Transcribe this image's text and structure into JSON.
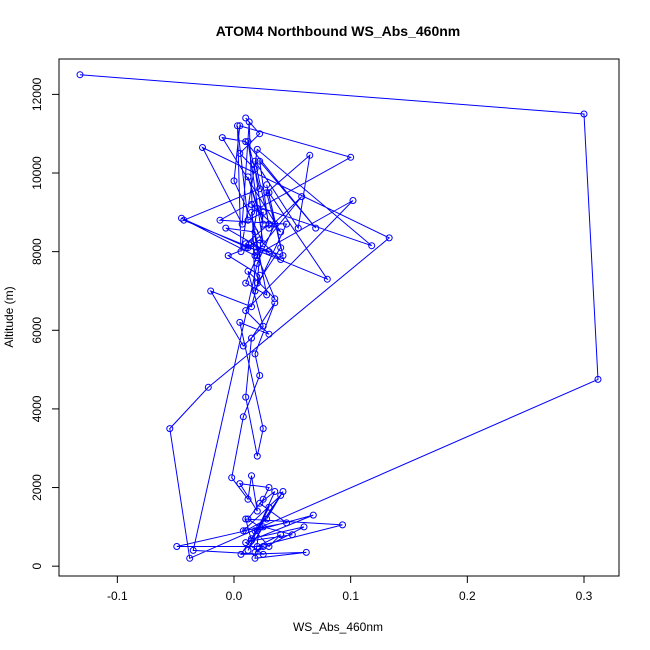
{
  "chart_data": {
    "type": "scatter",
    "title": "ATOM4 Northbound WS_Abs_460nm",
    "xlabel": "WS_Abs_460nm",
    "ylabel": "Altitude (m)",
    "xlim": [
      -0.15,
      0.33
    ],
    "ylim": [
      -250,
      12900
    ],
    "xticks": [
      -0.1,
      0.0,
      0.1,
      0.2,
      0.3
    ],
    "xtick_labels": [
      "-0.1",
      "0.0",
      "0.1",
      "0.2",
      "0.3"
    ],
    "yticks": [
      0,
      2000,
      4000,
      6000,
      8000,
      10000,
      12000
    ],
    "ytick_labels": [
      "0",
      "2000",
      "4000",
      "6000",
      "8000",
      "10000",
      "12000"
    ],
    "grid": false,
    "legend": "none",
    "style": "points connected by lines",
    "color": "#0000ff",
    "series": [
      {
        "x": [
          -0.132,
          0.3,
          0.312,
          -0.038,
          -0.055,
          -0.022,
          0.133,
          -0.027,
          0.007,
          0.013,
          0.018,
          0.045,
          -0.012,
          0.03,
          0.08,
          -0.043,
          0.022,
          0.012,
          0.025,
          0.0,
          0.005,
          0.1,
          0.015,
          0.02,
          0.058,
          0.03,
          0.022,
          0.07,
          0.01,
          -0.01,
          0.04,
          0.015,
          0.118,
          0.02,
          0.006,
          0.003,
          0.012,
          0.025,
          0.02,
          0.04,
          0.028,
          0.042,
          0.01,
          0.03,
          0.018,
          0.055,
          0.065,
          0.028,
          0.035,
          0.02,
          -0.035,
          0.025,
          0.01,
          0.068,
          0.018,
          0.03,
          0.04,
          0.02,
          0.093,
          0.01,
          0.015,
          0.05,
          0.025,
          0.012,
          0.035,
          0.022,
          0.045,
          0.008,
          0.04,
          0.02,
          0.03,
          0.015,
          0.06,
          0.018,
          0.025,
          -0.049,
          0.01,
          0.028,
          0.042,
          0.006,
          0.062,
          0.018,
          0.022,
          0.012,
          0.025,
          0.03,
          0.005,
          0.02,
          0.015,
          0.012,
          -0.002,
          0.008,
          0.022,
          0.018,
          0.035,
          0.015,
          0.01,
          0.02,
          0.025,
          0.005,
          0.03,
          0.01,
          0.102,
          0.018,
          -0.045,
          0.012,
          -0.005,
          0.022,
          0.015,
          -0.02,
          0.008,
          0.025,
          0.012,
          0.035,
          0.02,
          0.01,
          0.028,
          0.018,
          -0.007,
          0.04,
          0.022,
          0.01,
          0.03,
          0.015,
          0.02,
          0.012,
          0.025,
          0.018,
          0.005,
          0.022,
          0.01
        ],
        "y": [
          12500,
          11500,
          4750,
          200,
          3500,
          4550,
          8350,
          10650,
          8700,
          11300,
          7000,
          8700,
          8800,
          9500,
          7300,
          8800,
          9600,
          10800,
          8200,
          9800,
          11200,
          10400,
          9000,
          8000,
          9400,
          8600,
          10300,
          8600,
          10800,
          10900,
          8500,
          9200,
          8150,
          10600,
          8000,
          11200,
          8800,
          9000,
          7200,
          8100,
          9700,
          7900,
          8200,
          8700,
          10300,
          8600,
          10450,
          9500,
          8700,
          7700,
          400,
          300,
          600,
          1300,
          900,
          500,
          800,
          500,
          1050,
          1200,
          650,
          800,
          1000,
          400,
          1900,
          1600,
          1100,
          900,
          1800,
          900,
          1500,
          700,
          1000,
          350,
          500,
          500,
          900,
          1200,
          1900,
          300,
          350,
          200,
          1000,
          1200,
          1700,
          2000,
          2100,
          1400,
          2300,
          1700,
          2250,
          3800,
          4850,
          5400,
          6700,
          5800,
          4300,
          2800,
          3500,
          6200,
          5900,
          6500,
          9300,
          7900,
          8850,
          8100,
          7900,
          7400,
          6600,
          7000,
          5600,
          6100,
          7500,
          6800,
          7900,
          7200,
          6900,
          8500,
          8600,
          7800,
          8300,
          8100,
          8000,
          8200,
          9100,
          9900,
          8700,
          10100,
          10500,
          11000,
          11400
        ]
      }
    ]
  }
}
